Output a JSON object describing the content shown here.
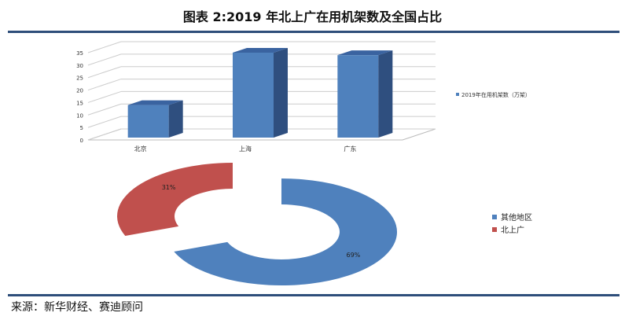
{
  "title": "图表 2:2019 年北上广在用机架数及全国占比",
  "source": "来源：新华财经、赛迪顾问",
  "chart_data": [
    {
      "type": "bar",
      "categories": [
        "北京",
        "上海",
        "广东"
      ],
      "values": [
        14,
        35,
        34
      ],
      "ylim": [
        0,
        35
      ],
      "yticks": [
        0,
        5,
        10,
        15,
        20,
        25,
        30,
        35
      ],
      "grid": true,
      "legend": "right",
      "series": [
        {
          "name": "2019年在用机架数（万架）",
          "values": [
            14,
            35,
            34
          ]
        }
      ],
      "colors": {
        "bar": "#4f81bd",
        "side": "#2f4f7f"
      }
    },
    {
      "type": "pie",
      "style": "exploded-donut",
      "labels": [
        "其他地区",
        "北上广"
      ],
      "values": [
        69,
        31
      ],
      "data_labels": [
        "69%",
        "31%"
      ],
      "legend": "right",
      "colors": [
        "#4f81bd",
        "#c0504d"
      ]
    }
  ]
}
